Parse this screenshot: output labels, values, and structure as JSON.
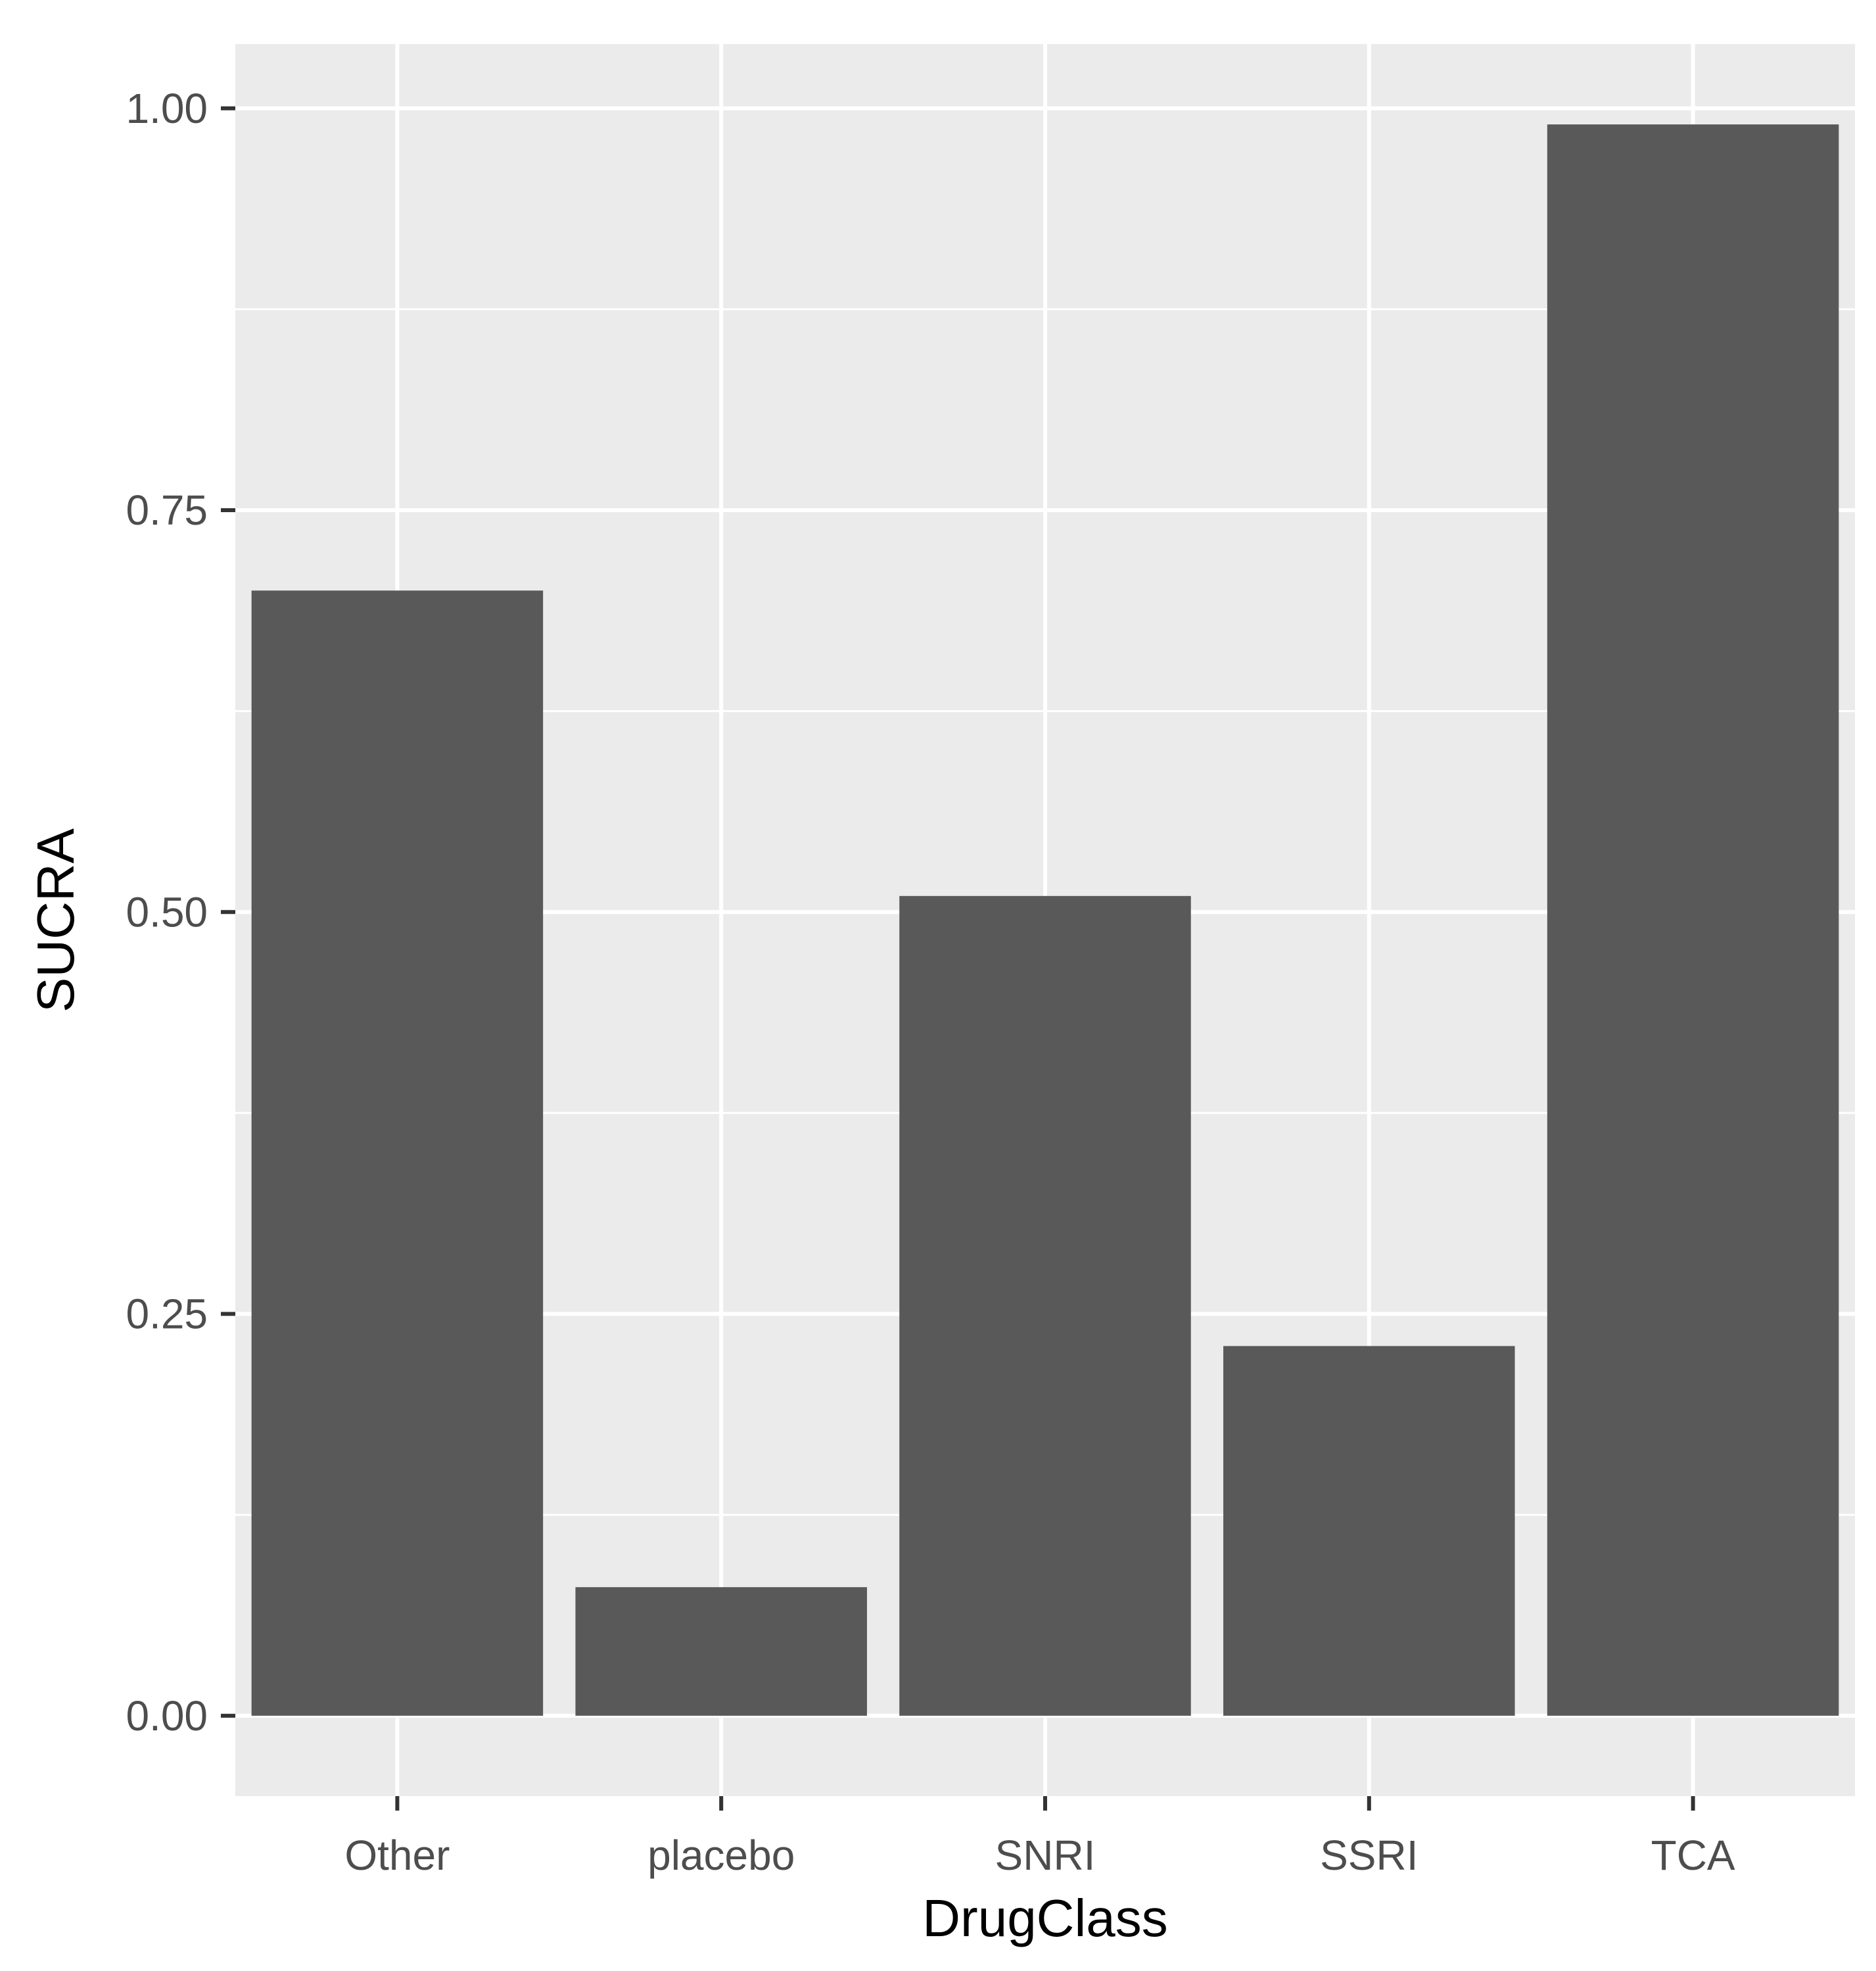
{
  "chart_data": {
    "type": "bar",
    "categories": [
      "Other",
      "placebo",
      "SNRI",
      "SSRI",
      "TCA"
    ],
    "values": [
      0.7,
      0.08,
      0.51,
      0.23,
      0.99
    ],
    "xlabel": "DrugClass",
    "ylabel": "SUCRA",
    "ylim": [
      -0.05,
      1.04
    ],
    "yticks": [
      0.0,
      0.25,
      0.5,
      0.75,
      1.0
    ],
    "ytick_labels": [
      "0.00",
      "0.25",
      "0.50",
      "0.75",
      "1.00"
    ],
    "grid": true,
    "legend": "none",
    "colors": {
      "panel_background": "#ebebeb",
      "grid": "#ffffff",
      "bar": "#595959",
      "tick": "#333333",
      "tick_label": "#4d4d4d"
    }
  }
}
